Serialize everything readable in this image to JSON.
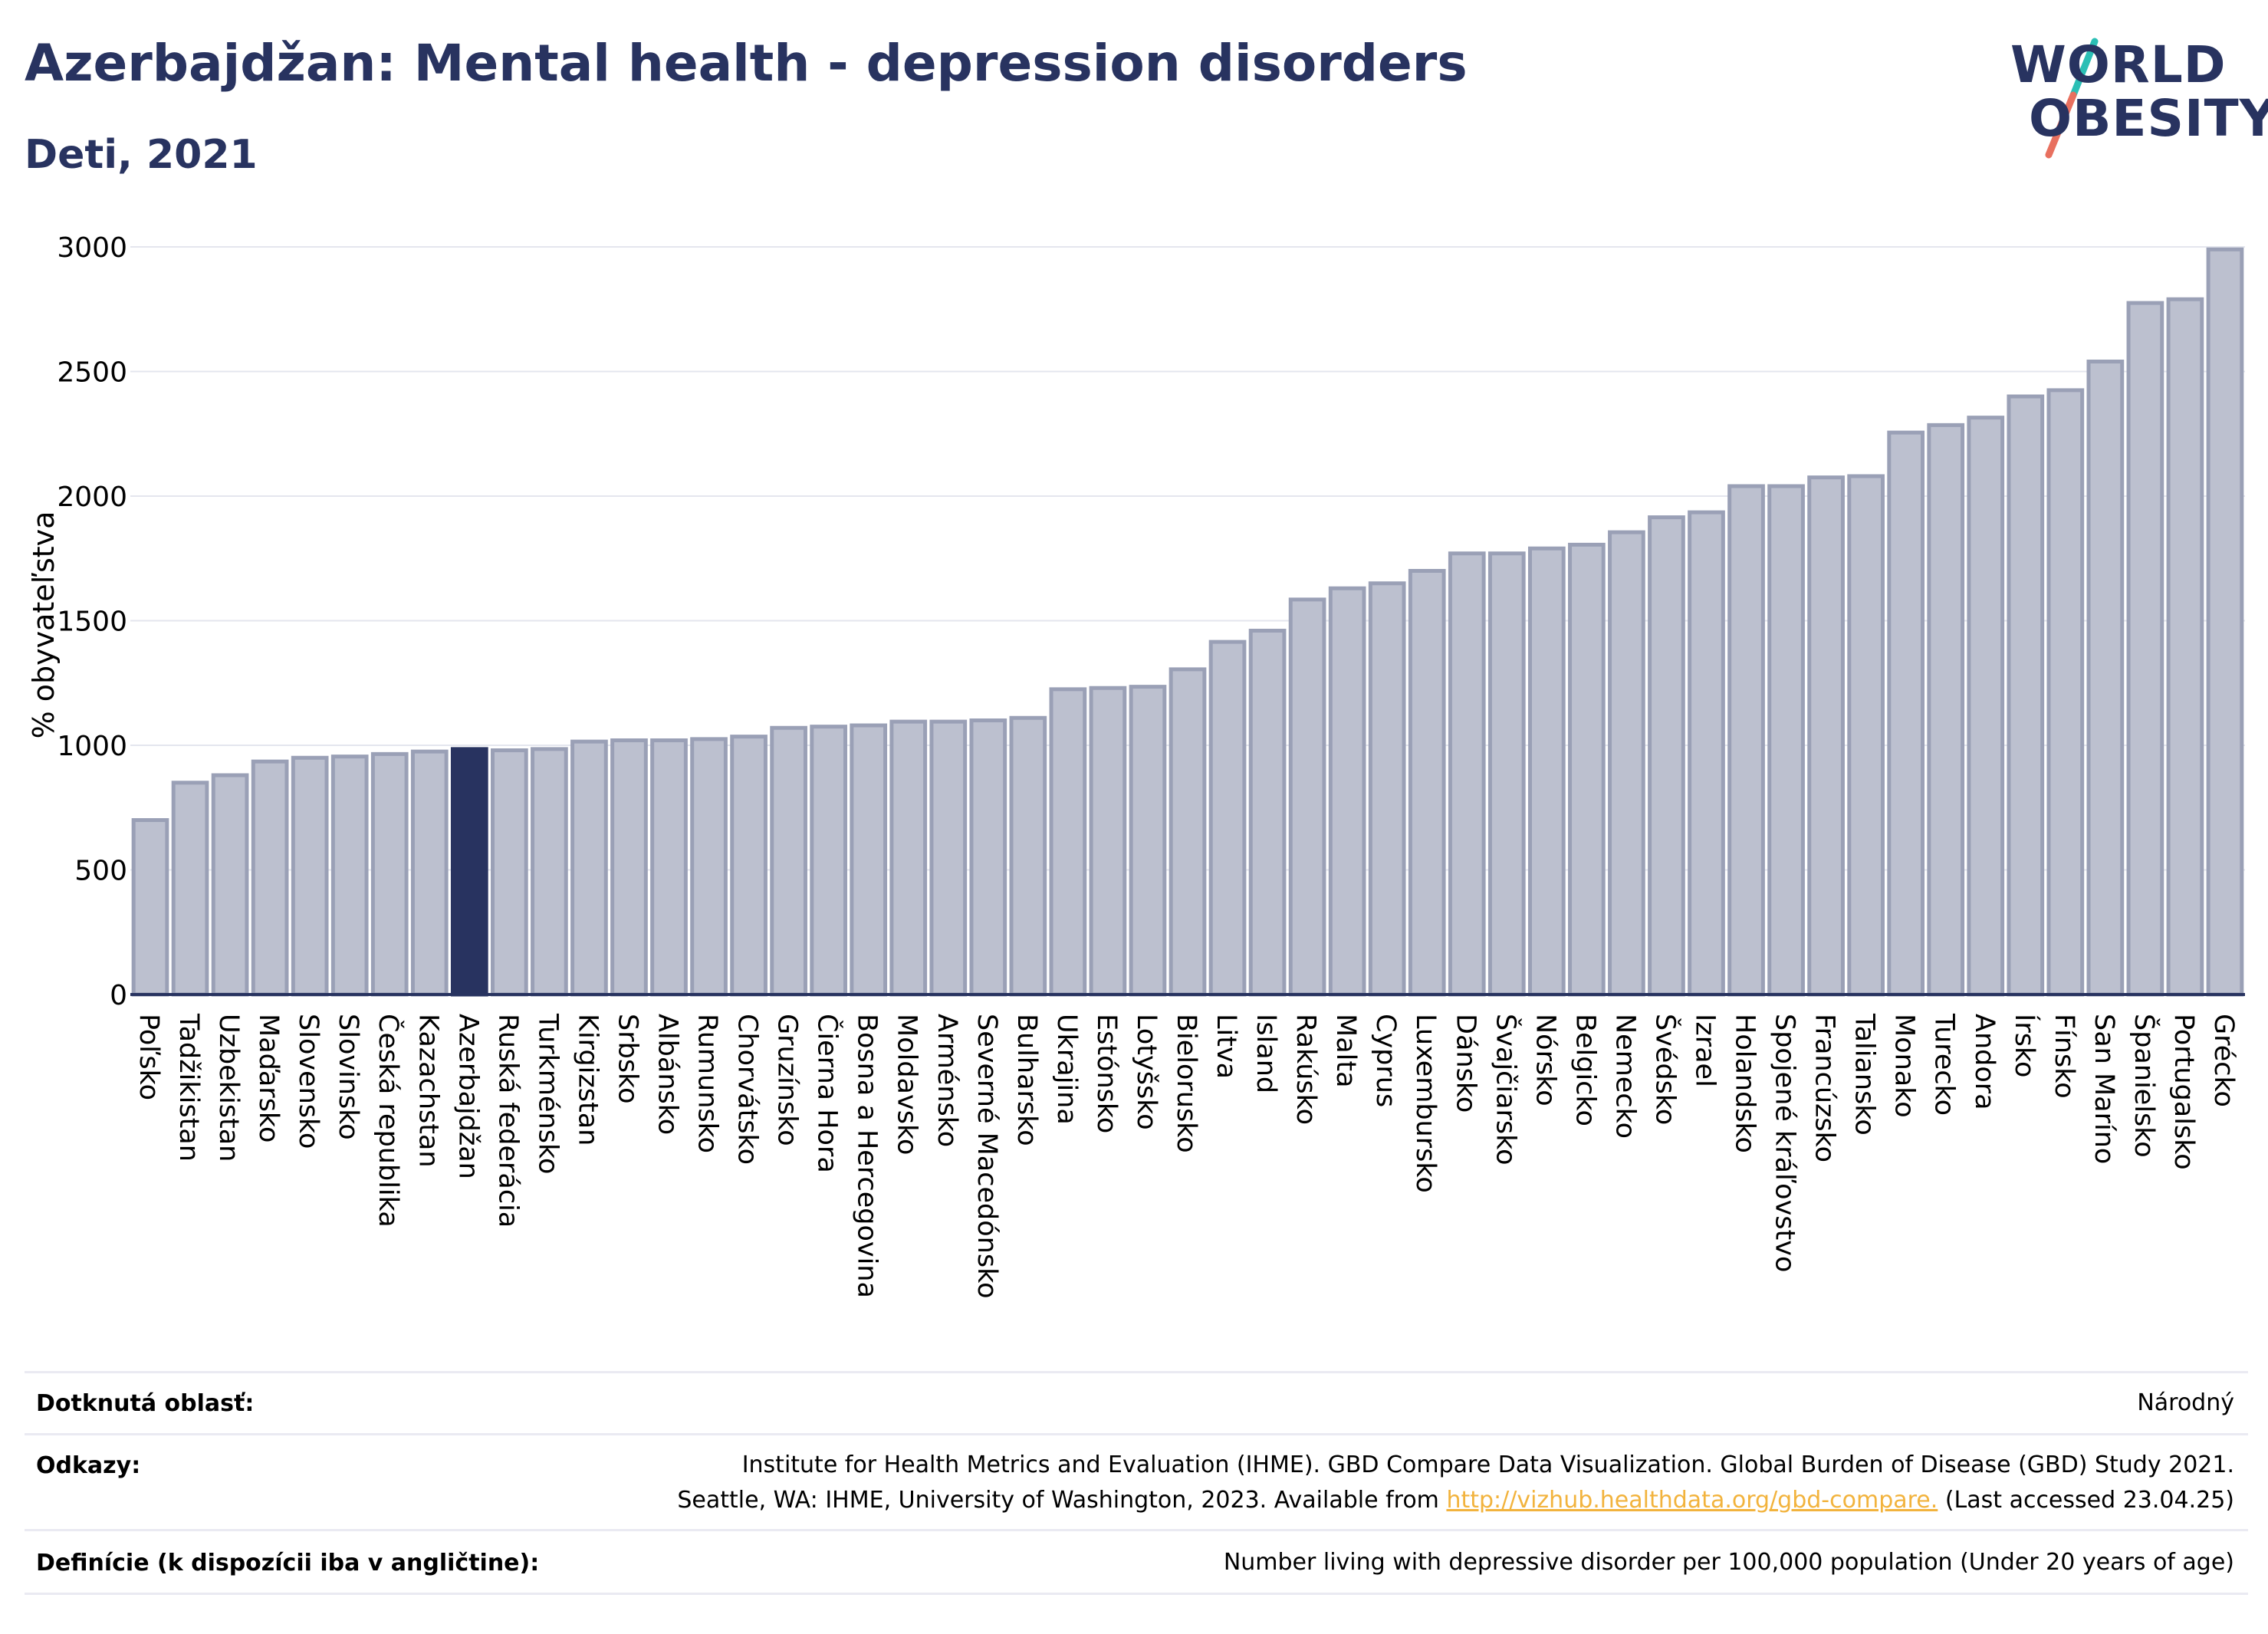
{
  "header": {
    "title": "Azerbajdžan: Mental health - depression disorders",
    "subtitle": "Deti, 2021"
  },
  "logo": {
    "line1": "WORLD",
    "line2": "OBESITY"
  },
  "colors": {
    "accent": "#283360",
    "bar": "#bcc0cf",
    "bar_border": "#9aa0b6",
    "logo_slash_top": "#2bbfb5",
    "logo_slash_bottom": "#e8705f",
    "link": "#f2b33d"
  },
  "chart_data": {
    "type": "bar",
    "ylabel": "% obyvateľstva",
    "ylim": [
      0,
      3000
    ],
    "yticks": [
      0,
      500,
      1000,
      1500,
      2000,
      2500,
      3000
    ],
    "grid": true,
    "highlight": "Azerbajdžan",
    "categories": [
      "Poľsko",
      "Tadžikistan",
      "Uzbekistan",
      "Maďarsko",
      "Slovensko",
      "Slovinsko",
      "Česká republika",
      "Kazachstan",
      "Azerbajdžan",
      "Ruská federácia",
      "Turkménsko",
      "Kirgizstan",
      "Srbsko",
      "Albánsko",
      "Rumunsko",
      "Chorvátsko",
      "Gruzínsko",
      "Čierna Hora",
      "Bosna a Hercegovina",
      "Moldavsko",
      "Arménsko",
      "Severné Macedónsko",
      "Bulharsko",
      "Ukrajina",
      "Estónsko",
      "Lotyšsko",
      "Bielorusko",
      "Litva",
      "Island",
      "Rakúsko",
      "Malta",
      "Cyprus",
      "Luxembursko",
      "Dánsko",
      "Švajčiarsko",
      "Nórsko",
      "Belgicko",
      "Nemecko",
      "Švédsko",
      "Izrael",
      "Holandsko",
      "Spojené kráľovstvo",
      "Francúzsko",
      "Taliansko",
      "Monako",
      "Turecko",
      "Andora",
      "Írsko",
      "Fínsko",
      "San Maríno",
      "Španielsko",
      "Portugalsko",
      "Grécko"
    ],
    "values": [
      700,
      850,
      880,
      935,
      950,
      955,
      965,
      975,
      985,
      980,
      985,
      1015,
      1020,
      1020,
      1025,
      1035,
      1070,
      1075,
      1080,
      1095,
      1095,
      1100,
      1110,
      1225,
      1230,
      1235,
      1305,
      1415,
      1460,
      1585,
      1630,
      1650,
      1700,
      1770,
      1770,
      1790,
      1805,
      1855,
      1915,
      1935,
      2040,
      2040,
      2075,
      2080,
      2255,
      2285,
      2315,
      2400,
      2425,
      2540,
      2775,
      2790,
      2990
    ]
  },
  "footer": {
    "rows": [
      {
        "label": "Dotknutá oblasť:",
        "lines": [
          "Národný"
        ]
      },
      {
        "label": "Odkazy:",
        "lines": [
          "Institute for Health Metrics and Evaluation (IHME). GBD Compare Data Visualization. Global Burden of Disease (GBD) Study 2021."
        ],
        "line2_pre": "Seattle, WA: IHME, University of Washington, 2023. Available from ",
        "line2_link": "http://vizhub.healthdata.org/gbd-compare.",
        "line2_post": " (Last accessed 23.04.25)"
      },
      {
        "label": "Definície (k dispozícii iba v angličtine):",
        "lines": [
          "Number living with depressive disorder per 100,000 population (Under 20 years of age)"
        ]
      }
    ]
  }
}
